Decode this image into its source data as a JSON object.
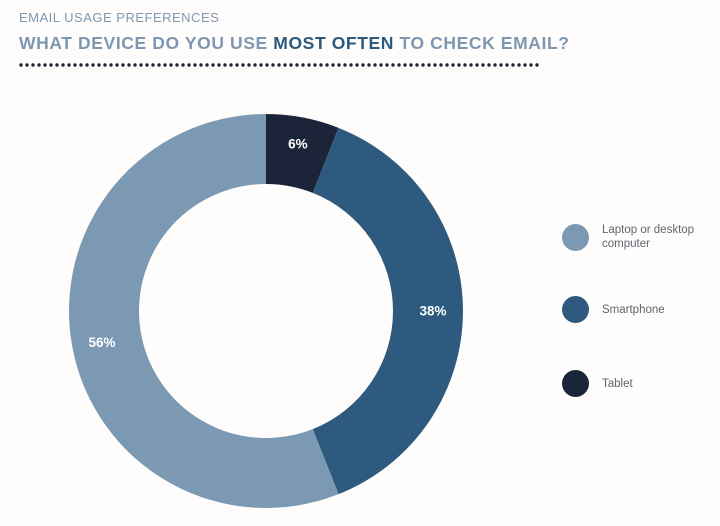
{
  "header": {
    "eyebrow": "EMAIL USAGE PREFERENCES",
    "title_before": "WHAT DEVICE DO YOU USE ",
    "title_emphasis": "MOST OFTEN",
    "title_after": " TO CHECK EMAIL?"
  },
  "colors": {
    "header_text": "#7e97b1",
    "title_emphasis": "#2c5a7e",
    "dots": "#1f2432"
  },
  "chart_data": {
    "type": "pie",
    "variant": "donut",
    "title": "WHAT DEVICE DO YOU USE MOST OFTEN TO CHECK EMAIL?",
    "unit": "%",
    "start_angle_deg": 0,
    "direction": "clockwise",
    "slices": [
      {
        "name": "Tablet",
        "value": 6,
        "label": "6%",
        "color": "#1b2438"
      },
      {
        "name": "Smartphone",
        "value": 38,
        "label": "38%",
        "color": "#2d5a7e"
      },
      {
        "name": "Laptop or desktop computer",
        "value": 56,
        "label": "56%",
        "color": "#7b99b3"
      }
    ],
    "legend": {
      "placement": "right",
      "items": [
        {
          "label": "Laptop or desktop computer",
          "color": "#7b99b3"
        },
        {
          "label": "Smartphone",
          "color": "#2d5a7e"
        },
        {
          "label": "Tablet",
          "color": "#1b2438"
        }
      ]
    }
  }
}
